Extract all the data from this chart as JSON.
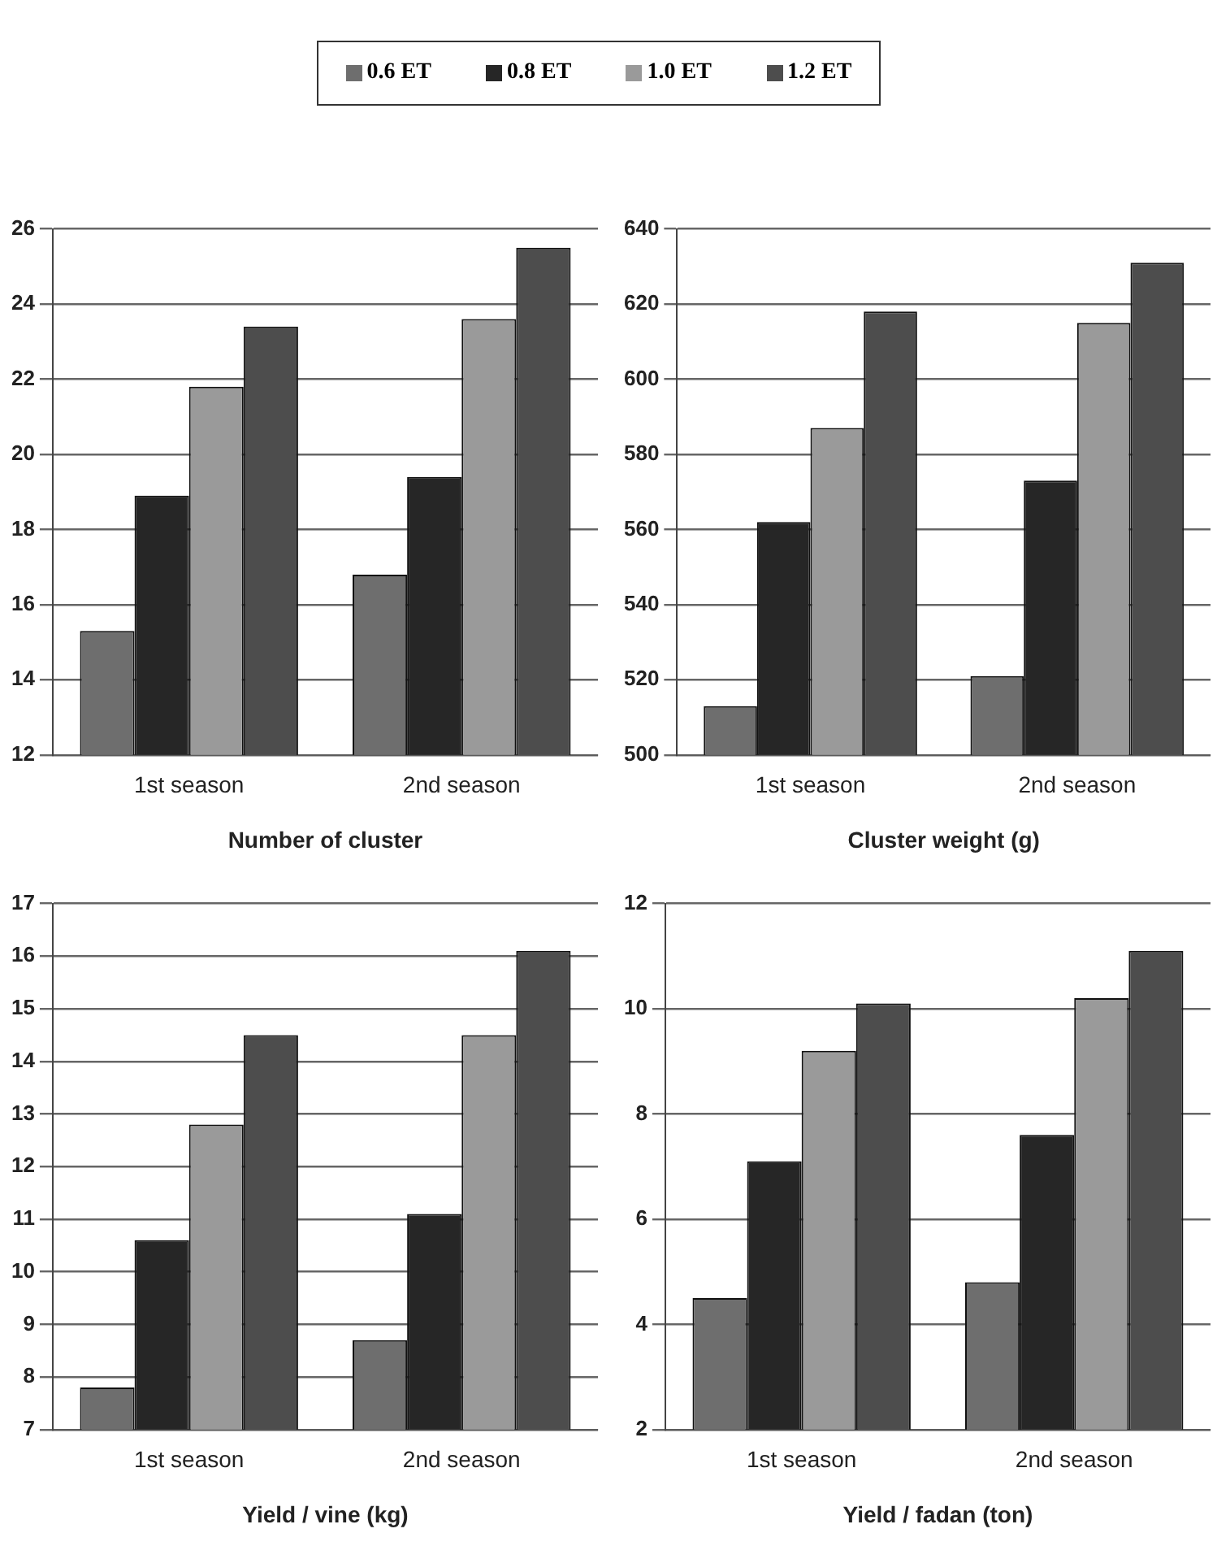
{
  "chart_data": [
    {
      "type": "bar",
      "xlabel": "Number of cluster",
      "categories": [
        "1st season",
        "2nd season"
      ],
      "series": [
        {
          "name": "0.6 ET",
          "color": "#6e6e6e",
          "values": [
            15.3,
            16.8
          ]
        },
        {
          "name": "0.8 ET",
          "color": "#262626",
          "values": [
            18.9,
            19.4
          ]
        },
        {
          "name": "1.0 ET",
          "color": "#9a9a9a",
          "values": [
            21.8,
            23.6
          ]
        },
        {
          "name": "1.2 ET",
          "color": "#4d4d4d",
          "values": [
            23.4,
            25.5
          ]
        }
      ],
      "ylim": [
        12,
        26
      ],
      "yticks": [
        12,
        14,
        16,
        18,
        20,
        22,
        24,
        26
      ],
      "grid": "y",
      "legend": "top"
    },
    {
      "type": "bar",
      "xlabel": "Cluster weight (g)",
      "categories": [
        "1st season",
        "2nd season"
      ],
      "series": [
        {
          "color": "#6e6e6e",
          "values": [
            513,
            521
          ]
        },
        {
          "color": "#262626",
          "values": [
            562,
            573
          ]
        },
        {
          "color": "#9a9a9a",
          "values": [
            587,
            615
          ]
        },
        {
          "color": "#4d4d4d",
          "values": [
            618,
            631
          ]
        }
      ],
      "ylim": [
        500,
        640
      ],
      "yticks": [
        500,
        520,
        540,
        560,
        580,
        600,
        620,
        640
      ],
      "grid": "y"
    },
    {
      "type": "bar",
      "xlabel": "Yield / vine (kg)",
      "categories": [
        "1st season",
        "2nd season"
      ],
      "series": [
        {
          "color": "#6e6e6e",
          "values": [
            7.8,
            8.7
          ]
        },
        {
          "color": "#262626",
          "values": [
            10.6,
            11.1
          ]
        },
        {
          "color": "#9a9a9a",
          "values": [
            12.8,
            14.5
          ]
        },
        {
          "color": "#4d4d4d",
          "values": [
            14.5,
            16.1
          ]
        }
      ],
      "ylim": [
        7,
        17
      ],
      "yticks": [
        7,
        8,
        9,
        10,
        11,
        12,
        13,
        14,
        15,
        16,
        17
      ],
      "grid": "y"
    },
    {
      "type": "bar",
      "xlabel": "Yield / fadan (ton)",
      "categories": [
        "1st season",
        "2nd season"
      ],
      "series": [
        {
          "color": "#6e6e6e",
          "values": [
            4.5,
            4.8
          ]
        },
        {
          "color": "#262626",
          "values": [
            7.1,
            7.6
          ]
        },
        {
          "color": "#9a9a9a",
          "values": [
            9.2,
            10.2
          ]
        },
        {
          "color": "#4d4d4d",
          "values": [
            10.1,
            11.1
          ]
        }
      ],
      "ylim": [
        2,
        12
      ],
      "yticks": [
        2,
        4,
        6,
        8,
        10,
        12
      ],
      "grid": "y"
    }
  ]
}
